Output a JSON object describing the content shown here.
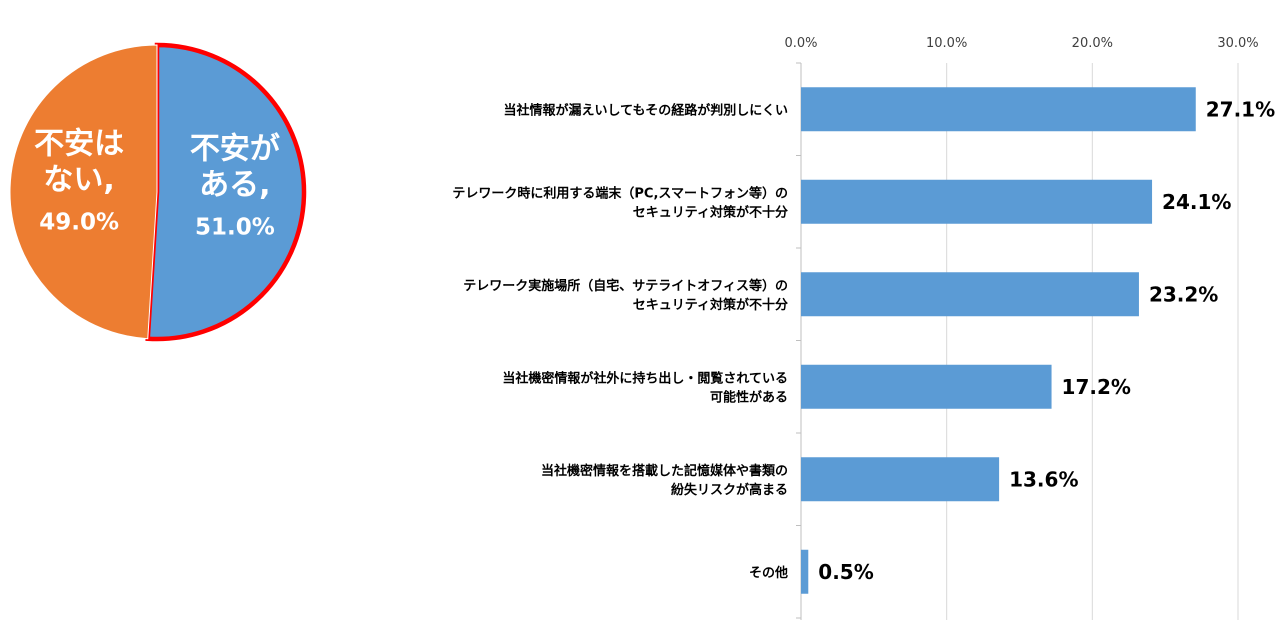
{
  "chart_data": [
    {
      "type": "pie",
      "slices": [
        {
          "label_lines": [
            "不安が",
            "ある,"
          ],
          "value_label": "51.0%",
          "value": 51.0,
          "color": "#5b9bd5",
          "highlight": "#ff0000"
        },
        {
          "label_lines": [
            "不安は",
            "ない,"
          ],
          "value_label": "49.0%",
          "value": 49.0,
          "color": "#ed7d31"
        }
      ]
    },
    {
      "type": "bar",
      "orientation": "horizontal",
      "categories": [
        [
          "当社情報が漏えいしてもその経路が判別しにくい"
        ],
        [
          "テレワーク時に利用する端末（PC,スマートフォン等）の",
          "セキュリティ対策が不十分"
        ],
        [
          "テレワーク実施場所（自宅、サテライトオフィス等）の",
          "セキュリティ対策が不十分"
        ],
        [
          "当社機密情報が社外に持ち出し・閲覧されている",
          "可能性がある"
        ],
        [
          "当社機密情報を搭載した記憶媒体や書類の",
          "紛失リスクが高まる"
        ],
        [
          "その他"
        ]
      ],
      "values": [
        27.1,
        24.1,
        23.2,
        17.2,
        13.6,
        0.5
      ],
      "value_labels": [
        "27.1%",
        "24.1%",
        "23.2%",
        "17.2%",
        "13.6%",
        "0.5%"
      ],
      "xlim": [
        0,
        30
      ],
      "ticks": [
        0,
        10,
        20,
        30
      ],
      "tick_labels": [
        "0.0%",
        "10.0%",
        "20.0%",
        "30.0%"
      ],
      "axis_position": "top",
      "grid": true,
      "bar_color": "#5b9bd5"
    }
  ]
}
